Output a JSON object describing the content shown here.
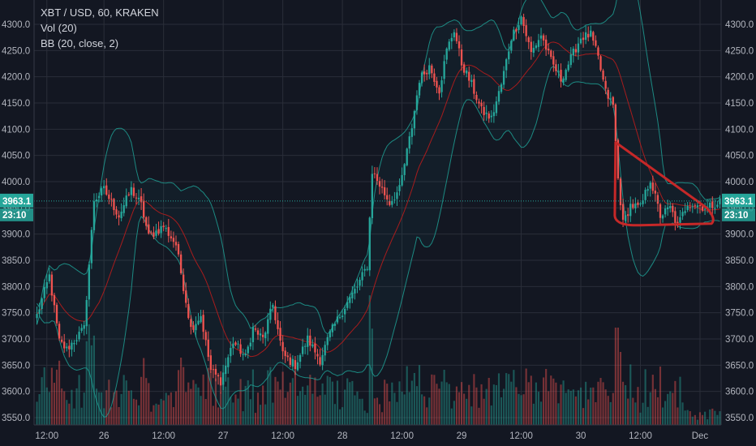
{
  "legend": {
    "symbol": "XBT / USD, 60, KRAKEN",
    "volume": "Vol (20)",
    "bb": "BB (20, close, 2)"
  },
  "colors": {
    "background": "#131722",
    "up": "#26a69a",
    "down": "#ef5350",
    "bb_band": "#1f9e93",
    "bb_basis": "#b71c1c",
    "annotation": "#c62828",
    "price_line": "#26a69a"
  },
  "chart_data": {
    "type": "candlestick",
    "title": "XBT / USD, 60, KRAKEN",
    "indicators": [
      "Vol (20)",
      "BB (20, close, 2)"
    ],
    "y_axis": {
      "position": "left-and-right",
      "ticks": [
        4300.0,
        4250.0,
        4200.0,
        4150.0,
        4100.0,
        4050.0,
        4000.0,
        3950.0,
        3900.0,
        3850.0,
        3800.0,
        3750.0,
        3700.0,
        3650.0,
        3600.0,
        3550.0
      ],
      "tick_labels": [
        "4300.0",
        "4250.0",
        "4200.0",
        "4150.0",
        "4100.0",
        "4050.0",
        "4000.0",
        "3950.0",
        "3900.0",
        "3850.0",
        "3800.0",
        "3750.0",
        "3700.0",
        "3650.0",
        "3600.0",
        "3550.0"
      ],
      "range": [
        3540,
        4320
      ]
    },
    "x_axis": {
      "tick_labels": [
        "12:00",
        "26",
        "12:00",
        "27",
        "12:00",
        "28",
        "12:00",
        "29",
        "12:00",
        "30",
        "12:00",
        "Dec"
      ],
      "tick_index": [
        4,
        27,
        51,
        75,
        99,
        123,
        147,
        171,
        195,
        219,
        243,
        267
      ],
      "bar_count": 276
    },
    "last_price": {
      "value": 3963.1,
      "label": "3963.1",
      "countdown": "23:10"
    },
    "grid": true,
    "key_closes": [
      {
        "index": 0,
        "close": 3745
      },
      {
        "index": 5,
        "close": 3820
      },
      {
        "index": 9,
        "close": 3695
      },
      {
        "index": 12,
        "close": 3680
      },
      {
        "index": 19,
        "close": 3720
      },
      {
        "index": 23,
        "close": 3965
      },
      {
        "index": 27,
        "close": 3985
      },
      {
        "index": 33,
        "close": 3935
      },
      {
        "index": 38,
        "close": 3985
      },
      {
        "index": 42,
        "close": 3955
      },
      {
        "index": 45,
        "close": 3895
      },
      {
        "index": 51,
        "close": 3915
      },
      {
        "index": 56,
        "close": 3880
      },
      {
        "index": 62,
        "close": 3720
      },
      {
        "index": 66,
        "close": 3745
      },
      {
        "index": 70,
        "close": 3640
      },
      {
        "index": 74,
        "close": 3620
      },
      {
        "index": 79,
        "close": 3695
      },
      {
        "index": 84,
        "close": 3665
      },
      {
        "index": 87,
        "close": 3720
      },
      {
        "index": 91,
        "close": 3700
      },
      {
        "index": 95,
        "close": 3765
      },
      {
        "index": 99,
        "close": 3670
      },
      {
        "index": 104,
        "close": 3650
      },
      {
        "index": 109,
        "close": 3700
      },
      {
        "index": 114,
        "close": 3660
      },
      {
        "index": 118,
        "close": 3710
      },
      {
        "index": 122,
        "close": 3745
      },
      {
        "index": 125,
        "close": 3770
      },
      {
        "index": 129,
        "close": 3800
      },
      {
        "index": 133,
        "close": 3840
      },
      {
        "index": 135,
        "close": 4020
      },
      {
        "index": 139,
        "close": 3985
      },
      {
        "index": 142,
        "close": 3960
      },
      {
        "index": 146,
        "close": 3985
      },
      {
        "index": 151,
        "close": 4105
      },
      {
        "index": 154,
        "close": 4195
      },
      {
        "index": 158,
        "close": 4220
      },
      {
        "index": 162,
        "close": 4175
      },
      {
        "index": 165,
        "close": 4250
      },
      {
        "index": 168,
        "close": 4290
      },
      {
        "index": 171,
        "close": 4225
      },
      {
        "index": 175,
        "close": 4185
      },
      {
        "index": 179,
        "close": 4135
      },
      {
        "index": 183,
        "close": 4120
      },
      {
        "index": 187,
        "close": 4185
      },
      {
        "index": 191,
        "close": 4275
      },
      {
        "index": 195,
        "close": 4315
      },
      {
        "index": 199,
        "close": 4245
      },
      {
        "index": 203,
        "close": 4280
      },
      {
        "index": 207,
        "close": 4230
      },
      {
        "index": 211,
        "close": 4195
      },
      {
        "index": 215,
        "close": 4235
      },
      {
        "index": 219,
        "close": 4275
      },
      {
        "index": 223,
        "close": 4280
      },
      {
        "index": 226,
        "close": 4235
      },
      {
        "index": 229,
        "close": 4170
      },
      {
        "index": 232,
        "close": 4145
      },
      {
        "index": 234,
        "close": 4005
      },
      {
        "index": 236,
        "close": 3920
      },
      {
        "index": 239,
        "close": 3955
      },
      {
        "index": 243,
        "close": 3950
      },
      {
        "index": 247,
        "close": 4005
      },
      {
        "index": 251,
        "close": 3935
      },
      {
        "index": 255,
        "close": 3950
      },
      {
        "index": 258,
        "close": 3915
      },
      {
        "index": 262,
        "close": 3960
      },
      {
        "index": 266,
        "close": 3955
      },
      {
        "index": 270,
        "close": 3950
      },
      {
        "index": 275,
        "close": 3963
      }
    ]
  }
}
